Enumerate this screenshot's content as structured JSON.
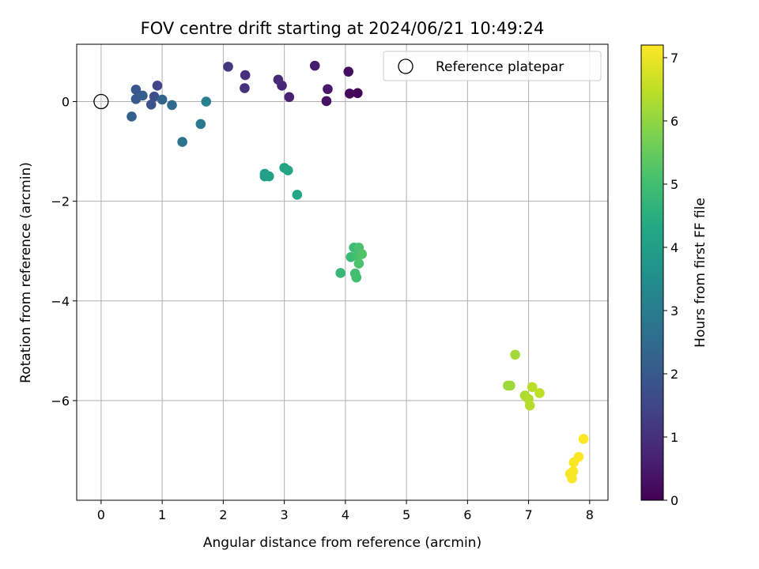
{
  "chart_data": {
    "type": "scatter",
    "title": "FOV centre drift starting at 2024/06/21 10:49:24",
    "xlabel": "Angular distance from reference (arcmin)",
    "ylabel": "Rotation from reference (arcmin)",
    "xlim": [
      -0.4,
      8.3
    ],
    "ylim": [
      -8.0,
      1.15
    ],
    "xticks": [
      0,
      1,
      2,
      3,
      4,
      5,
      6,
      7,
      8
    ],
    "yticks": [
      0,
      -2,
      -4,
      -6
    ],
    "ytick_labels": [
      "0",
      "−2",
      "−4",
      "−6"
    ],
    "grid": true,
    "colormap": "viridis",
    "colorbar": {
      "label": "Hours from first FF file",
      "range": [
        0,
        7.2
      ],
      "ticks": [
        0,
        1,
        2,
        3,
        4,
        5,
        6,
        7
      ]
    },
    "legend": {
      "position": "top-right",
      "entries": [
        {
          "label": "Reference platepar",
          "marker": "hollow-circle",
          "color": "#000000"
        }
      ]
    },
    "reference_point": {
      "x": 0,
      "y": 0
    },
    "series": [
      {
        "points": [
          {
            "x": 4.2,
            "y": 0.17,
            "t": 0.05
          },
          {
            "x": 4.07,
            "y": 0.16,
            "t": 0.15
          },
          {
            "x": 4.05,
            "y": 0.6,
            "t": 0.25
          },
          {
            "x": 3.69,
            "y": 0.01,
            "t": 0.35
          },
          {
            "x": 3.71,
            "y": 0.25,
            "t": 0.45
          },
          {
            "x": 3.5,
            "y": 0.72,
            "t": 0.55
          },
          {
            "x": 3.08,
            "y": 0.09,
            "t": 0.65
          },
          {
            "x": 2.96,
            "y": 0.32,
            "t": 0.75
          },
          {
            "x": 2.9,
            "y": 0.44,
            "t": 0.85
          },
          {
            "x": 2.36,
            "y": 0.53,
            "t": 0.95
          },
          {
            "x": 2.35,
            "y": 0.27,
            "t": 1.05
          },
          {
            "x": 2.08,
            "y": 0.7,
            "t": 1.15
          },
          {
            "x": 0.92,
            "y": 0.32,
            "t": 1.5
          },
          {
            "x": 0.87,
            "y": 0.1,
            "t": 1.7
          },
          {
            "x": 0.82,
            "y": -0.06,
            "t": 1.8
          },
          {
            "x": 0.57,
            "y": 0.24,
            "t": 1.9
          },
          {
            "x": 0.57,
            "y": 0.05,
            "t": 2.0
          },
          {
            "x": 0.68,
            "y": 0.12,
            "t": 2.1
          },
          {
            "x": 0.5,
            "y": -0.3,
            "t": 2.2
          },
          {
            "x": 1.0,
            "y": 0.04,
            "t": 2.3
          },
          {
            "x": 1.16,
            "y": -0.07,
            "t": 2.5
          },
          {
            "x": 1.33,
            "y": -0.81,
            "t": 2.7
          },
          {
            "x": 1.63,
            "y": -0.45,
            "t": 2.9
          },
          {
            "x": 1.72,
            "y": 0.0,
            "t": 3.1
          },
          {
            "x": 2.68,
            "y": -1.45,
            "t": 4.0
          },
          {
            "x": 2.68,
            "y": -1.5,
            "t": 4.05
          },
          {
            "x": 2.75,
            "y": -1.5,
            "t": 4.1
          },
          {
            "x": 3.0,
            "y": -1.33,
            "t": 4.15
          },
          {
            "x": 3.06,
            "y": -1.38,
            "t": 4.2
          },
          {
            "x": 3.21,
            "y": -1.87,
            "t": 4.25
          },
          {
            "x": 3.92,
            "y": -3.44,
            "t": 4.8
          },
          {
            "x": 4.09,
            "y": -3.12,
            "t": 4.85
          },
          {
            "x": 4.14,
            "y": -2.93,
            "t": 4.9
          },
          {
            "x": 4.16,
            "y": -3.45,
            "t": 4.95
          },
          {
            "x": 4.18,
            "y": -3.53,
            "t": 5.0
          },
          {
            "x": 4.2,
            "y": -3.1,
            "t": 5.05
          },
          {
            "x": 4.22,
            "y": -2.93,
            "t": 5.1
          },
          {
            "x": 4.22,
            "y": -3.25,
            "t": 5.15
          },
          {
            "x": 4.27,
            "y": -3.06,
            "t": 5.2
          },
          {
            "x": 6.66,
            "y": -5.7,
            "t": 6.1
          },
          {
            "x": 6.7,
            "y": -5.7,
            "t": 6.15
          },
          {
            "x": 6.78,
            "y": -5.08,
            "t": 6.2
          },
          {
            "x": 6.94,
            "y": -5.9,
            "t": 6.3
          },
          {
            "x": 7.0,
            "y": -5.97,
            "t": 6.35
          },
          {
            "x": 7.02,
            "y": -6.1,
            "t": 6.4
          },
          {
            "x": 7.06,
            "y": -5.73,
            "t": 6.45
          },
          {
            "x": 7.18,
            "y": -5.85,
            "t": 6.5
          },
          {
            "x": 7.68,
            "y": -7.47,
            "t": 7.1
          },
          {
            "x": 7.71,
            "y": -7.56,
            "t": 7.12
          },
          {
            "x": 7.73,
            "y": -7.42,
            "t": 7.14
          },
          {
            "x": 7.74,
            "y": -7.24,
            "t": 7.16
          },
          {
            "x": 7.82,
            "y": -7.13,
            "t": 7.18
          },
          {
            "x": 7.9,
            "y": -6.77,
            "t": 7.2
          }
        ]
      }
    ]
  }
}
